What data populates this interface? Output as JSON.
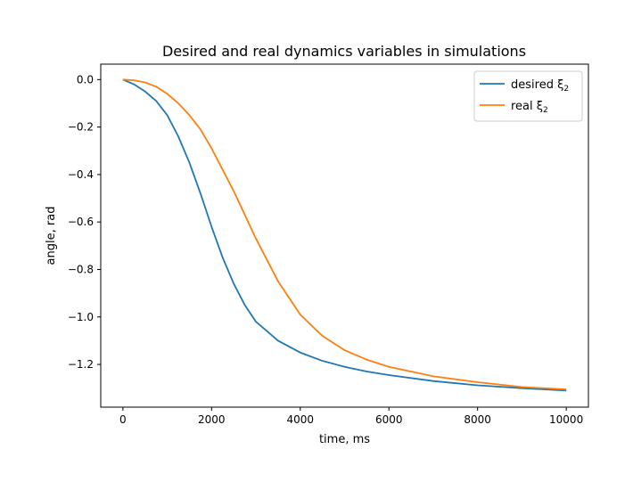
{
  "chart_data": {
    "type": "line",
    "title": "Desired and real dynamics variables in simulations",
    "xlabel": "time, ms",
    "ylabel": "angle, rad",
    "xlim": [
      -500,
      10500
    ],
    "ylim": [
      -1.38,
      0.065
    ],
    "xticks": [
      0,
      2000,
      4000,
      6000,
      8000,
      10000
    ],
    "xtick_labels": [
      "0",
      "2000",
      "4000",
      "6000",
      "8000",
      "10000"
    ],
    "yticks": [
      0.0,
      -0.2,
      -0.4,
      -0.6,
      -0.8,
      -1.0,
      -1.2
    ],
    "ytick_labels": [
      "0.0",
      "−0.2",
      "−0.4",
      "−0.6",
      "−0.8",
      "−1.0",
      "−1.2"
    ],
    "grid": false,
    "legend_position": "top-right",
    "series": [
      {
        "name": "desired ξ₂",
        "label_main": "desired ξ",
        "label_sub": "2",
        "color": "#1f77b4",
        "x": [
          0,
          250,
          500,
          750,
          1000,
          1250,
          1500,
          1750,
          2000,
          2250,
          2500,
          2750,
          3000,
          3500,
          4000,
          4500,
          5000,
          5500,
          6000,
          7000,
          8000,
          9000,
          10000
        ],
        "y": [
          0.0,
          -0.02,
          -0.05,
          -0.09,
          -0.15,
          -0.24,
          -0.35,
          -0.48,
          -0.62,
          -0.75,
          -0.86,
          -0.95,
          -1.02,
          -1.1,
          -1.15,
          -1.185,
          -1.21,
          -1.23,
          -1.245,
          -1.27,
          -1.288,
          -1.3,
          -1.31
        ]
      },
      {
        "name": "real ξ₂",
        "label_main": "real ξ",
        "label_sub": "2",
        "color": "#ff7f0e",
        "x": [
          0,
          250,
          500,
          750,
          1000,
          1250,
          1500,
          1750,
          2000,
          2250,
          2500,
          2750,
          3000,
          3250,
          3500,
          3750,
          4000,
          4500,
          5000,
          5500,
          6000,
          7000,
          8000,
          9000,
          10000
        ],
        "y": [
          0.0,
          -0.003,
          -0.012,
          -0.03,
          -0.06,
          -0.1,
          -0.15,
          -0.21,
          -0.29,
          -0.38,
          -0.47,
          -0.57,
          -0.67,
          -0.76,
          -0.85,
          -0.92,
          -0.99,
          -1.08,
          -1.14,
          -1.18,
          -1.21,
          -1.25,
          -1.275,
          -1.295,
          -1.305
        ]
      }
    ]
  }
}
